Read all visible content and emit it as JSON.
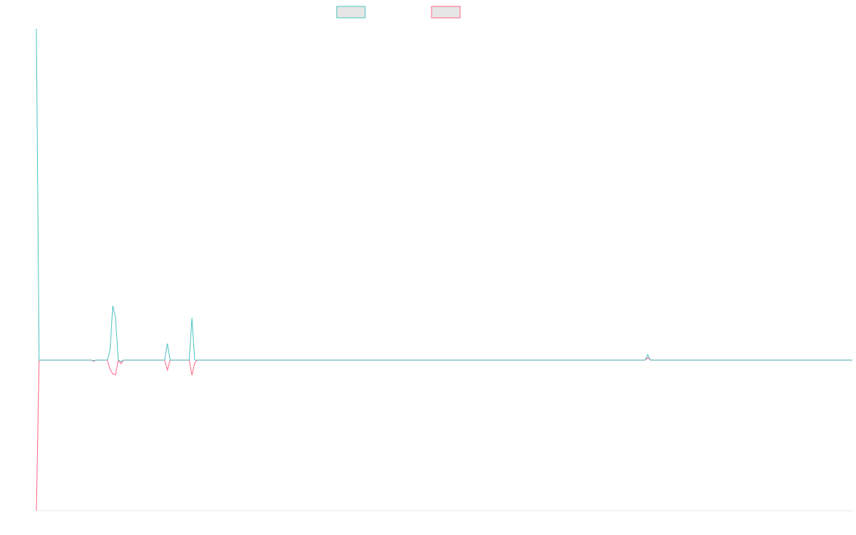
{
  "colors": {
    "series_a": "#4bc0c0",
    "series_b": "#ff6384",
    "swatch_fill": "#e6e6e6",
    "axis": "#e6e6e6"
  },
  "chart_data": {
    "type": "line",
    "title": "",
    "xlabel": "",
    "ylabel": "",
    "legend_position": "top-center",
    "grid": false,
    "x_count": 300,
    "ylim": [
      -50,
      111
    ],
    "series": [
      {
        "color_key": "series_a",
        "points": [
          [
            0,
            110
          ],
          [
            1,
            0
          ],
          [
            20,
            0
          ],
          [
            21,
            -0.2
          ],
          [
            22,
            0
          ],
          [
            26,
            0
          ],
          [
            27,
            3.5
          ],
          [
            28,
            18
          ],
          [
            29,
            14
          ],
          [
            30,
            0
          ],
          [
            31,
            -0.5
          ],
          [
            32,
            0
          ],
          [
            47,
            0
          ],
          [
            48,
            5.5
          ],
          [
            49,
            0
          ],
          [
            56,
            0
          ],
          [
            57,
            14
          ],
          [
            58,
            0
          ],
          [
            223,
            0
          ],
          [
            224,
            1.8
          ],
          [
            225,
            0
          ],
          [
            299,
            0
          ]
        ]
      },
      {
        "color_key": "series_b",
        "points": [
          [
            0,
            -50
          ],
          [
            1,
            0
          ],
          [
            20,
            0
          ],
          [
            21,
            -0.4
          ],
          [
            22,
            0
          ],
          [
            26,
            0
          ],
          [
            27,
            -3
          ],
          [
            28,
            -4.6
          ],
          [
            29,
            -4.9
          ],
          [
            30,
            0
          ],
          [
            31,
            -1.2
          ],
          [
            32,
            0
          ],
          [
            47,
            0
          ],
          [
            48,
            -3.3
          ],
          [
            49,
            0
          ],
          [
            56,
            0
          ],
          [
            57,
            -5
          ],
          [
            58,
            -1
          ],
          [
            59,
            0
          ],
          [
            223,
            0
          ],
          [
            224,
            0.8
          ],
          [
            225,
            0
          ],
          [
            299,
            0
          ]
        ]
      }
    ]
  }
}
